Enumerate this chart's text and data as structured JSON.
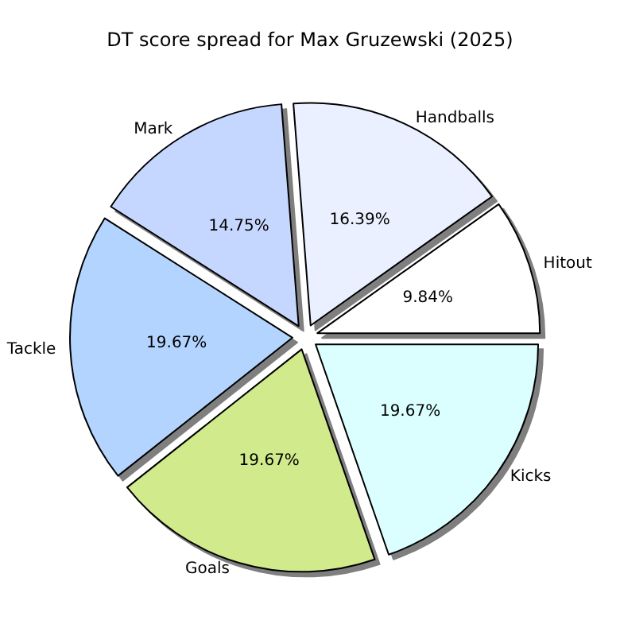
{
  "chart_data": {
    "type": "pie",
    "title": "DT score spread for Max Gruzewski (2025)",
    "categories": [
      "Hitout",
      "Handballs",
      "Mark",
      "Tackle",
      "Goals",
      "Kicks"
    ],
    "values": [
      9.84,
      16.39,
      14.75,
      19.67,
      19.67,
      19.67
    ],
    "value_labels": [
      "9.84%",
      "16.39%",
      "14.75%",
      "19.67%",
      "19.67%",
      "19.67%"
    ],
    "colors": [
      "#ffffff",
      "#eaf0ff",
      "#c6d7ff",
      "#b3d4ff",
      "#d1ea8c",
      "#dbffff"
    ],
    "legend": false
  }
}
